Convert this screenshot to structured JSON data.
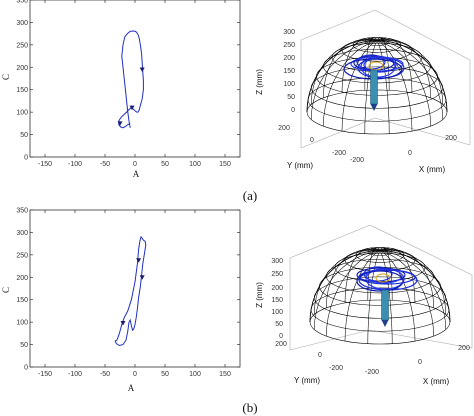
{
  "captions": {
    "a": "(a)",
    "b": "(b)"
  },
  "chart_data": [
    {
      "type": "line",
      "panel": "a-2d",
      "xlabel": "A",
      "ylabel": "C",
      "xlim": [
        -175,
        175
      ],
      "ylim": [
        0,
        350
      ],
      "xticks": [
        -150,
        -100,
        -50,
        0,
        50,
        100,
        150
      ],
      "yticks": [
        0,
        50,
        100,
        150,
        200,
        250,
        300,
        350
      ],
      "series": [
        {
          "x": [
            -8,
            -10,
            -12,
            -14,
            -16,
            -18,
            -20,
            -22,
            -20,
            -17,
            -12,
            -8,
            -3,
            1,
            3,
            5,
            7,
            9,
            11,
            12,
            13,
            14,
            14,
            12,
            9,
            7,
            5,
            3,
            0,
            -3,
            -6,
            -10,
            -14,
            -18,
            -22,
            -25,
            -27,
            -27,
            -24,
            -20,
            -16,
            -12,
            -8
          ],
          "y": [
            65,
            80,
            100,
            125,
            150,
            175,
            200,
            225,
            250,
            268,
            276,
            280,
            281,
            280,
            277,
            273,
            265,
            250,
            230,
            210,
            190,
            170,
            150,
            130,
            115,
            105,
            100,
            100,
            103,
            107,
            110,
            106,
            100,
            95,
            90,
            85,
            80,
            72,
            67,
            65,
            68,
            72,
            75
          ]
        }
      ],
      "markers": [
        [
          -5,
          110
        ],
        [
          -25,
          75
        ],
        [
          12,
          195
        ]
      ]
    },
    {
      "type": "line",
      "panel": "b-2d",
      "xlabel": "A",
      "ylabel": "C",
      "xlim": [
        -175,
        175
      ],
      "ylim": [
        0,
        350
      ],
      "xticks": [
        -150,
        -100,
        -50,
        0,
        50,
        100,
        150
      ],
      "yticks": [
        0,
        50,
        100,
        150,
        200,
        250,
        300,
        350
      ],
      "series": [
        {
          "x": [
            -30,
            -26,
            -22,
            -18,
            -12,
            -6,
            0,
            4,
            6,
            8,
            10,
            12,
            14,
            17,
            18,
            16,
            13,
            11,
            9,
            6,
            4,
            2,
            0,
            -2,
            -4,
            -6,
            -8,
            -10,
            -12,
            -15,
            -20,
            -26,
            -31,
            -33,
            -30
          ],
          "y": [
            60,
            75,
            95,
            110,
            125,
            150,
            190,
            230,
            262,
            280,
            290,
            287,
            283,
            280,
            272,
            255,
            230,
            205,
            180,
            155,
            130,
            110,
            95,
            85,
            82,
            92,
            105,
            100,
            80,
            60,
            50,
            48,
            52,
            58,
            60
          ]
        }
      ],
      "markers": [
        [
          -20,
          98
        ],
        [
          6,
          238
        ],
        [
          12,
          200
        ]
      ]
    },
    {
      "type": "3d-trajectory",
      "panel": "a-3d",
      "xlabel": "X (mm)",
      "ylabel": "Y (mm)",
      "zlabel": "Z (mm)",
      "zticks": [
        0,
        50,
        100,
        150,
        200,
        250,
        300
      ],
      "yticks": [
        200,
        0,
        -200
      ],
      "xticks": [
        -200,
        0,
        200
      ]
    },
    {
      "type": "3d-trajectory",
      "panel": "b-3d",
      "xlabel": "X (mm)",
      "ylabel": "Y (mm)",
      "zlabel": "Z (mm)",
      "zticks": [
        0,
        50,
        100,
        150,
        200,
        250,
        300
      ],
      "yticks": [
        200,
        0,
        -200
      ],
      "xticks": [
        -200,
        0,
        200
      ]
    }
  ]
}
